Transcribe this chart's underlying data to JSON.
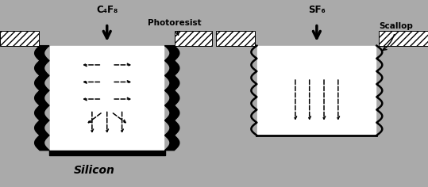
{
  "bg_color": "#aaaaaa",
  "white_color": "#ffffff",
  "black_color": "#000000",
  "silicon_label": "Silicon",
  "c4f8_label": "C₄F₈",
  "sf6_label": "SF₆",
  "photoresist_label": "Photoresist",
  "scallop_label": "Scallop",
  "fig_width": 5.39,
  "fig_height": 2.36,
  "dpi": 100,
  "xlim": [
    0,
    10
  ],
  "ylim": [
    0,
    4.36
  ]
}
